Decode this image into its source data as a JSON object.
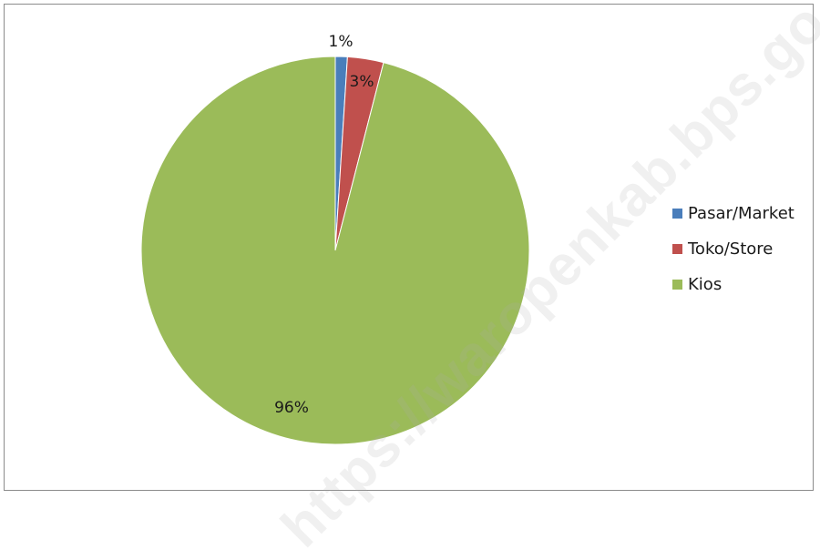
{
  "chart_data": {
    "type": "pie",
    "categories": [
      "Pasar/Market",
      "Toko/Store",
      "Kios"
    ],
    "values": [
      1,
      3,
      96
    ],
    "data_labels": [
      "1%",
      "3%",
      "96%"
    ],
    "colors": [
      "#4a7ebb",
      "#c0504d",
      "#9bbb59"
    ],
    "legend_position": "right",
    "start_angle_deg": 0,
    "direction": "clockwise"
  },
  "watermark": "https://waropenkab.bps.go.id"
}
